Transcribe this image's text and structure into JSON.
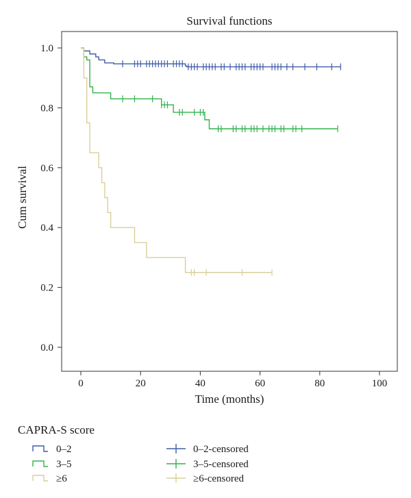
{
  "chart_data": {
    "type": "line",
    "subtype": "kaplan-meier step curves",
    "title": "Survival functions",
    "xlabel": "Time (months)",
    "ylabel": "Cum survival",
    "xlim": [
      -5,
      105
    ],
    "ylim": [
      -0.05,
      1.05
    ],
    "xticks": [
      0,
      20,
      40,
      60,
      80,
      100
    ],
    "yticks": [
      0.0,
      0.2,
      0.4,
      0.6,
      0.8,
      1.0
    ],
    "xtick_labels": [
      "0",
      "20",
      "40",
      "60",
      "80",
      "100"
    ],
    "ytick_labels": [
      "0.0",
      "0.2",
      "0.4",
      "0.6",
      "0.8",
      "1.0"
    ],
    "grid": false,
    "legend_title": "CAPRA-S score",
    "legend_position": "bottom",
    "series": [
      {
        "name": "0–2",
        "censored_name": "0–2-censored",
        "color": "#3f5ba9",
        "steps": [
          [
            0,
            1.0
          ],
          [
            1,
            0.99
          ],
          [
            3,
            0.98
          ],
          [
            5,
            0.97
          ],
          [
            6,
            0.96
          ],
          [
            8,
            0.95
          ],
          [
            11,
            0.947
          ],
          [
            35,
            0.94
          ],
          [
            35.5,
            0.937
          ]
        ],
        "end": 87,
        "censored": [
          14,
          18,
          19,
          20,
          22,
          23,
          24,
          25,
          26,
          27,
          28,
          29,
          31,
          32,
          33,
          34,
          36,
          37,
          38,
          39,
          41,
          42,
          43,
          44,
          45,
          47,
          48,
          50,
          52,
          53,
          54,
          55,
          57,
          58,
          59,
          60,
          61,
          64,
          65,
          66,
          67,
          69,
          71,
          75,
          79,
          84,
          87
        ]
      },
      {
        "name": "3–5",
        "censored_name": "3–5-censored",
        "color": "#2fb34a",
        "steps": [
          [
            0,
            1.0
          ],
          [
            1,
            0.97
          ],
          [
            2,
            0.96
          ],
          [
            3,
            0.87
          ],
          [
            4,
            0.85
          ],
          [
            10,
            0.83
          ],
          [
            27,
            0.81
          ],
          [
            31,
            0.785
          ],
          [
            41.5,
            0.76
          ],
          [
            43,
            0.73
          ]
        ],
        "end": 86,
        "censored": [
          14,
          18,
          24,
          27,
          28,
          29,
          33,
          34,
          38,
          40,
          41,
          46,
          47,
          51,
          52,
          54,
          55,
          57,
          58,
          59,
          61,
          63,
          64,
          65,
          67,
          68,
          71,
          72,
          74,
          86
        ]
      },
      {
        "name": "≥6",
        "censored_name": "≥6-censored",
        "color": "#d9cf98",
        "steps": [
          [
            0,
            1.0
          ],
          [
            1,
            0.9
          ],
          [
            2,
            0.75
          ],
          [
            3,
            0.65
          ],
          [
            6,
            0.6
          ],
          [
            7,
            0.55
          ],
          [
            8,
            0.5
          ],
          [
            9,
            0.45
          ],
          [
            10,
            0.4
          ],
          [
            18,
            0.35
          ],
          [
            22,
            0.3
          ],
          [
            35,
            0.25
          ]
        ],
        "end": 64,
        "censored": [
          37,
          38,
          42,
          54,
          64
        ]
      }
    ]
  }
}
